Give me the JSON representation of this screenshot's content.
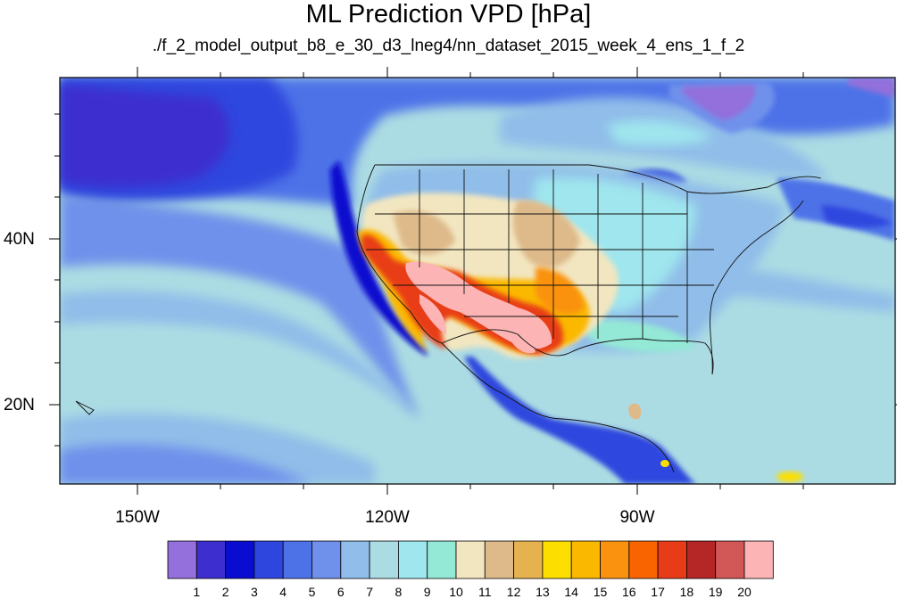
{
  "title": "ML Prediction VPD [hPa]",
  "subtitle": "./f_2_model_output_b8_e_30_d3_lneg4/nn_dataset_2015_week_4_ens_1_f_2",
  "lon_labels": [
    "150W",
    "120W",
    "90W"
  ],
  "lat_labels": [
    "40N",
    "20N"
  ],
  "colorbar": {
    "labels": [
      "1",
      "2",
      "3",
      "4",
      "5",
      "6",
      "7",
      "8",
      "9",
      "10",
      "11",
      "12",
      "13",
      "14",
      "15",
      "16",
      "17",
      "18",
      "19",
      "20"
    ],
    "colors": [
      "#9370db",
      "#3d2fcf",
      "#0a0ccf",
      "#2f46de",
      "#4d72e8",
      "#6f91eb",
      "#90bde9",
      "#acdce3",
      "#9fe6ee",
      "#94e8d6",
      "#f2e6c0",
      "#deba8a",
      "#e6b24f",
      "#fcde00",
      "#fbb800",
      "#fa9210",
      "#f96400",
      "#e83c18",
      "#b52626",
      "#d25858",
      "#fcb4b4"
    ]
  }
}
